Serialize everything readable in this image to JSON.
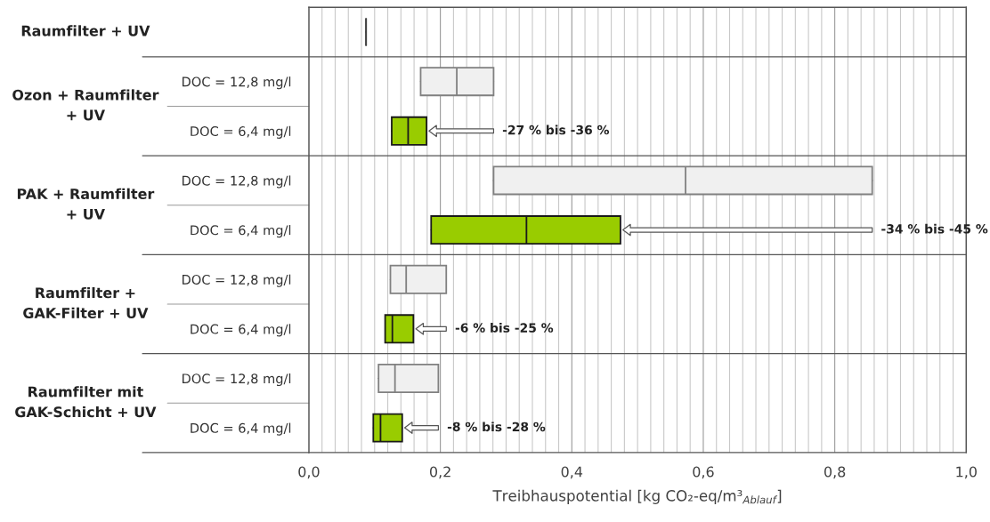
{
  "chart_data": {
    "type": "box",
    "orientation": "horizontal",
    "categories": [
      null,
      "DOC = 12,8 mg/l",
      "DOC = 6,4 mg/l",
      "DOC = 12,8 mg/l",
      "DOC = 6,4 mg/l",
      "DOC = 12,8 mg/l",
      "DOC = 6,4 mg/l",
      "DOC = 12,8 mg/l",
      "DOC = 6,4 mg/l"
    ],
    "boxes": [
      {
        "low": 0.087,
        "q1": 0.087,
        "median": 0.087,
        "q3": 0.087,
        "high": 0.087
      },
      {
        "low": 0.17,
        "q1": 0.17,
        "median": 0.225,
        "q3": 0.281,
        "high": 0.281
      },
      {
        "low": 0.126,
        "q1": 0.126,
        "median": 0.151,
        "q3": 0.179,
        "high": 0.179
      },
      {
        "low": 0.281,
        "q1": 0.281,
        "median": 0.573,
        "q3": 0.857,
        "high": 0.857
      },
      {
        "low": 0.186,
        "q1": 0.186,
        "median": 0.331,
        "q3": 0.474,
        "high": 0.474
      },
      {
        "low": 0.124,
        "q1": 0.124,
        "median": 0.148,
        "q3": 0.209,
        "high": 0.209
      },
      {
        "low": 0.116,
        "q1": 0.116,
        "median": 0.127,
        "q3": 0.159,
        "high": 0.159
      },
      {
        "low": 0.106,
        "q1": 0.106,
        "median": 0.131,
        "q3": 0.197,
        "high": 0.197
      },
      {
        "low": 0.098,
        "q1": 0.098,
        "median": 0.109,
        "q3": 0.142,
        "high": 0.142
      }
    ],
    "colors": [
      "#404040",
      "#f0f0f0",
      "#99cc00",
      "#f0f0f0",
      "#99cc00",
      "#f0f0f0",
      "#99cc00",
      "#f0f0f0",
      "#99cc00"
    ],
    "xlim": [
      0,
      1.0
    ],
    "xticks": [
      {
        "value": 0,
        "label": "0,0"
      },
      {
        "value": 0.02,
        "label": null
      },
      {
        "value": 0.04,
        "label": null
      },
      {
        "value": 0.06,
        "label": null
      },
      {
        "value": 0.08,
        "label": null
      },
      {
        "value": 0.1,
        "label": null
      },
      {
        "value": 0.12,
        "label": null
      },
      {
        "value": 0.14,
        "label": null
      },
      {
        "value": 0.16,
        "label": null
      },
      {
        "value": 0.18,
        "label": null
      },
      {
        "value": 0.2,
        "label": "0,2"
      },
      {
        "value": 0.22,
        "label": null
      },
      {
        "value": 0.24,
        "label": null
      },
      {
        "value": 0.26,
        "label": null
      },
      {
        "value": 0.28,
        "label": null
      },
      {
        "value": 0.3,
        "label": null
      },
      {
        "value": 0.32,
        "label": null
      },
      {
        "value": 0.34,
        "label": null
      },
      {
        "value": 0.36,
        "label": null
      },
      {
        "value": 0.38,
        "label": null
      },
      {
        "value": 0.4,
        "label": "0,4"
      },
      {
        "value": 0.42,
        "label": null
      },
      {
        "value": 0.44,
        "label": null
      },
      {
        "value": 0.46,
        "label": null
      },
      {
        "value": 0.48,
        "label": null
      },
      {
        "value": 0.5,
        "label": null
      },
      {
        "value": 0.52,
        "label": null
      },
      {
        "value": 0.54,
        "label": null
      },
      {
        "value": 0.56,
        "label": null
      },
      {
        "value": 0.58,
        "label": null
      },
      {
        "value": 0.6,
        "label": "0,6"
      },
      {
        "value": 0.62,
        "label": null
      },
      {
        "value": 0.64,
        "label": null
      },
      {
        "value": 0.66,
        "label": null
      },
      {
        "value": 0.68,
        "label": null
      },
      {
        "value": 0.7,
        "label": null
      },
      {
        "value": 0.72,
        "label": null
      },
      {
        "value": 0.74,
        "label": null
      },
      {
        "value": 0.76,
        "label": null
      },
      {
        "value": 0.78,
        "label": null
      },
      {
        "value": 0.8,
        "label": "0,8"
      },
      {
        "value": 0.82,
        "label": null
      },
      {
        "value": 0.84,
        "label": null
      },
      {
        "value": 0.86,
        "label": null
      },
      {
        "value": 0.88,
        "label": null
      },
      {
        "value": 0.9,
        "label": null
      },
      {
        "value": 0.92,
        "label": null
      },
      {
        "value": 0.94,
        "label": null
      },
      {
        "value": 0.96,
        "label": null
      },
      {
        "value": 0.98,
        "label": null
      },
      {
        "value": 1.0,
        "label": "1,0"
      }
    ],
    "grid": "x",
    "xlabel": "Treibhauspotential [kg CO₂-eq/m³$_{Ablauf}$]",
    "annotations": [
      "Raumfilter + UV",
      "Ozon + Raumfilter\n+ UV",
      "PAK + Raumfilter\n+ UV",
      "Raumfilter +\nGAK-Filter + UV",
      "Raumfilter mit\nGAK-Schicht + UV",
      "-27 % bis -36 %",
      "-34 % bis -45 %",
      "-6 % bis -25 %",
      "-8 % bis -28 %"
    ]
  }
}
